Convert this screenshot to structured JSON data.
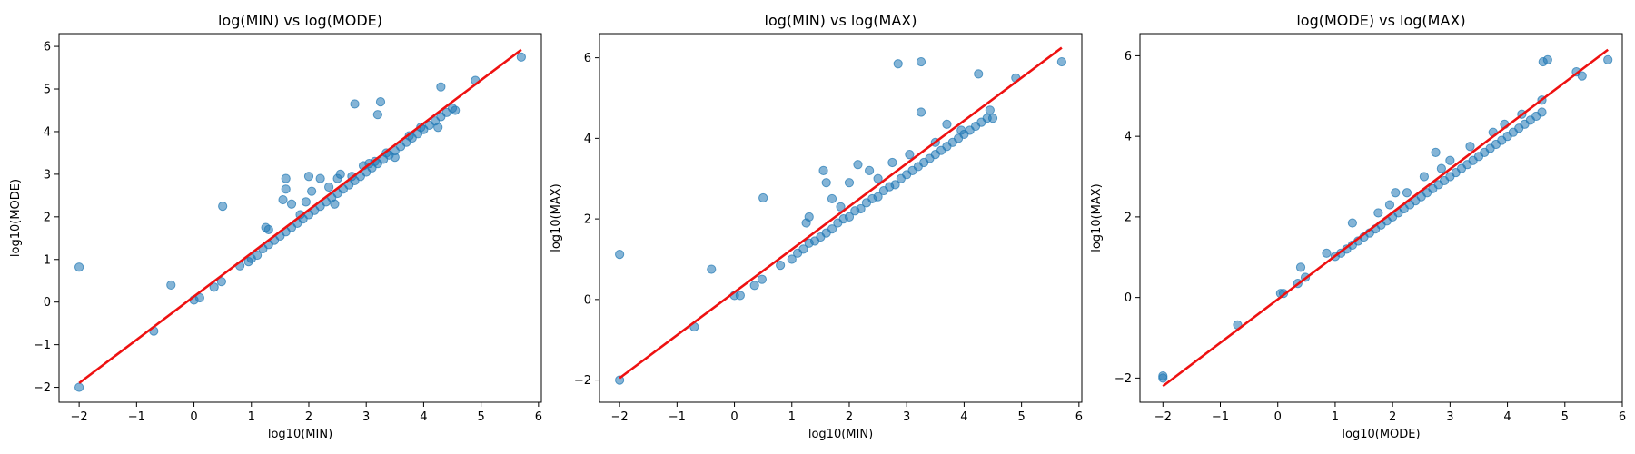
{
  "chart_data": [
    {
      "type": "scatter",
      "title": "log(MIN) vs log(MODE)",
      "xlabel": "log10(MIN)",
      "ylabel": "log10(MODE)",
      "xlim": [
        -2.35,
        6.05
      ],
      "ylim": [
        -2.35,
        6.3
      ],
      "xticks": [
        -2,
        -1,
        0,
        1,
        2,
        3,
        4,
        5,
        6
      ],
      "yticks": [
        -2,
        -1,
        0,
        1,
        2,
        3,
        4,
        5,
        6
      ],
      "xtick_labels": [
        "−2",
        "−1",
        "0",
        "1",
        "2",
        "3",
        "4",
        "5",
        "6"
      ],
      "ytick_labels": [
        "−2",
        "−1",
        "0",
        "1",
        "2",
        "3",
        "4",
        "5",
        "6"
      ],
      "grid": false,
      "series": [
        {
          "color": "#1f77b4",
          "points": [
            [
              -2.0,
              -2.0
            ],
            [
              -2.0,
              0.82
            ],
            [
              -0.7,
              -0.68
            ],
            [
              -0.4,
              0.4
            ],
            [
              0.0,
              0.05
            ],
            [
              0.1,
              0.1
            ],
            [
              0.35,
              0.35
            ],
            [
              0.48,
              0.48
            ],
            [
              0.5,
              2.25
            ],
            [
              0.8,
              0.85
            ],
            [
              0.95,
              0.95
            ],
            [
              1.0,
              1.02
            ],
            [
              1.1,
              1.1
            ],
            [
              1.2,
              1.25
            ],
            [
              1.3,
              1.35
            ],
            [
              1.25,
              1.75
            ],
            [
              1.3,
              1.7
            ],
            [
              1.4,
              1.45
            ],
            [
              1.5,
              1.55
            ],
            [
              1.55,
              2.4
            ],
            [
              1.6,
              2.65
            ],
            [
              1.6,
              2.9
            ],
            [
              1.6,
              1.65
            ],
            [
              1.7,
              1.75
            ],
            [
              1.7,
              2.3
            ],
            [
              1.8,
              1.85
            ],
            [
              1.85,
              2.05
            ],
            [
              1.9,
              1.95
            ],
            [
              1.95,
              2.35
            ],
            [
              2.0,
              2.05
            ],
            [
              2.05,
              2.6
            ],
            [
              2.0,
              2.95
            ],
            [
              2.1,
              2.15
            ],
            [
              2.2,
              2.25
            ],
            [
              2.2,
              2.9
            ],
            [
              2.3,
              2.35
            ],
            [
              2.35,
              2.7
            ],
            [
              2.4,
              2.45
            ],
            [
              2.45,
              2.3
            ],
            [
              2.5,
              2.55
            ],
            [
              2.5,
              2.9
            ],
            [
              2.55,
              3.0
            ],
            [
              2.6,
              2.65
            ],
            [
              2.7,
              2.75
            ],
            [
              2.75,
              2.95
            ],
            [
              2.8,
              2.85
            ],
            [
              2.8,
              4.65
            ],
            [
              2.9,
              2.95
            ],
            [
              2.95,
              3.2
            ],
            [
              3.0,
              3.05
            ],
            [
              3.05,
              3.25
            ],
            [
              3.1,
              3.15
            ],
            [
              3.15,
              3.3
            ],
            [
              3.2,
              3.25
            ],
            [
              3.2,
              4.4
            ],
            [
              3.25,
              4.7
            ],
            [
              3.3,
              3.35
            ],
            [
              3.35,
              3.5
            ],
            [
              3.4,
              3.45
            ],
            [
              3.5,
              3.55
            ],
            [
              3.5,
              3.4
            ],
            [
              3.6,
              3.65
            ],
            [
              3.7,
              3.75
            ],
            [
              3.75,
              3.9
            ],
            [
              3.8,
              3.85
            ],
            [
              3.9,
              3.95
            ],
            [
              3.95,
              4.1
            ],
            [
              4.0,
              4.05
            ],
            [
              4.1,
              4.15
            ],
            [
              4.2,
              4.25
            ],
            [
              4.25,
              4.1
            ],
            [
              4.3,
              4.35
            ],
            [
              4.3,
              5.05
            ],
            [
              4.4,
              4.45
            ],
            [
              4.5,
              4.55
            ],
            [
              4.55,
              4.5
            ],
            [
              4.9,
              5.2
            ],
            [
              5.7,
              5.75
            ]
          ]
        }
      ],
      "fit_line": {
        "color": "#ee1111",
        "x": [
          -2.0,
          5.7
        ],
        "y": [
          -1.9,
          5.92
        ]
      }
    },
    {
      "type": "scatter",
      "title": "log(MIN) vs log(MAX)",
      "xlabel": "log10(MIN)",
      "ylabel": "log10(MAX)",
      "xlim": [
        -2.35,
        6.05
      ],
      "ylim": [
        -2.55,
        6.6
      ],
      "xticks": [
        -2,
        -1,
        0,
        1,
        2,
        3,
        4,
        5,
        6
      ],
      "yticks": [
        -2,
        0,
        2,
        4,
        6
      ],
      "xtick_labels": [
        "−2",
        "−1",
        "0",
        "1",
        "2",
        "3",
        "4",
        "5",
        "6"
      ],
      "ytick_labels": [
        "−2",
        "0",
        "2",
        "4",
        "6"
      ],
      "grid": false,
      "series": [
        {
          "color": "#1f77b4",
          "points": [
            [
              -2.0,
              -2.0
            ],
            [
              -2.0,
              1.12
            ],
            [
              -0.7,
              -0.68
            ],
            [
              -0.4,
              0.75
            ],
            [
              0.0,
              0.1
            ],
            [
              0.1,
              0.1
            ],
            [
              0.35,
              0.35
            ],
            [
              0.48,
              0.5
            ],
            [
              0.5,
              2.52
            ],
            [
              0.8,
              0.85
            ],
            [
              1.0,
              1.0
            ],
            [
              1.1,
              1.15
            ],
            [
              1.2,
              1.25
            ],
            [
              1.25,
              1.9
            ],
            [
              1.3,
              2.05
            ],
            [
              1.3,
              1.4
            ],
            [
              1.4,
              1.45
            ],
            [
              1.5,
              1.55
            ],
            [
              1.55,
              3.2
            ],
            [
              1.6,
              2.9
            ],
            [
              1.6,
              1.65
            ],
            [
              1.7,
              1.75
            ],
            [
              1.7,
              2.5
            ],
            [
              1.8,
              1.9
            ],
            [
              1.85,
              2.3
            ],
            [
              1.9,
              2.0
            ],
            [
              2.0,
              2.05
            ],
            [
              2.0,
              2.9
            ],
            [
              2.1,
              2.2
            ],
            [
              2.15,
              3.35
            ],
            [
              2.2,
              2.25
            ],
            [
              2.3,
              2.4
            ],
            [
              2.35,
              3.2
            ],
            [
              2.4,
              2.5
            ],
            [
              2.5,
              2.55
            ],
            [
              2.5,
              3.0
            ],
            [
              2.6,
              2.7
            ],
            [
              2.7,
              2.8
            ],
            [
              2.75,
              3.4
            ],
            [
              2.8,
              2.85
            ],
            [
              2.85,
              5.85
            ],
            [
              2.9,
              3.0
            ],
            [
              3.0,
              3.1
            ],
            [
              3.05,
              3.6
            ],
            [
              3.1,
              3.2
            ],
            [
              3.2,
              3.3
            ],
            [
              3.25,
              4.65
            ],
            [
              3.25,
              5.9
            ],
            [
              3.3,
              3.4
            ],
            [
              3.4,
              3.5
            ],
            [
              3.5,
              3.6
            ],
            [
              3.5,
              3.9
            ],
            [
              3.6,
              3.7
            ],
            [
              3.7,
              3.8
            ],
            [
              3.7,
              4.35
            ],
            [
              3.8,
              3.9
            ],
            [
              3.9,
              4.0
            ],
            [
              3.95,
              4.2
            ],
            [
              4.0,
              4.1
            ],
            [
              4.1,
              4.2
            ],
            [
              4.2,
              4.3
            ],
            [
              4.25,
              5.6
            ],
            [
              4.3,
              4.4
            ],
            [
              4.4,
              4.5
            ],
            [
              4.45,
              4.7
            ],
            [
              4.5,
              4.5
            ],
            [
              4.9,
              5.5
            ],
            [
              5.7,
              5.9
            ]
          ]
        }
      ],
      "fit_line": {
        "color": "#ee1111",
        "x": [
          -2.0,
          5.7
        ],
        "y": [
          -1.95,
          6.25
        ]
      }
    },
    {
      "type": "scatter",
      "title": "log(MODE) vs log(MAX)",
      "xlabel": "log10(MODE)",
      "ylabel": "log10(MAX)",
      "xlim": [
        -2.4,
        6.0
      ],
      "ylim": [
        -2.6,
        6.55
      ],
      "xticks": [
        -2,
        -1,
        0,
        1,
        2,
        3,
        4,
        5,
        6
      ],
      "yticks": [
        -2,
        0,
        2,
        4,
        6
      ],
      "xtick_labels": [
        "−2",
        "−1",
        "0",
        "1",
        "2",
        "3",
        "4",
        "5",
        "6"
      ],
      "ytick_labels": [
        "−2",
        "0",
        "2",
        "4",
        "6"
      ],
      "grid": false,
      "series": [
        {
          "color": "#1f77b4",
          "points": [
            [
              -2.0,
              -2.0
            ],
            [
              -2.0,
              -1.95
            ],
            [
              -0.7,
              -0.68
            ],
            [
              0.05,
              0.1
            ],
            [
              0.1,
              0.1
            ],
            [
              0.35,
              0.35
            ],
            [
              0.4,
              0.75
            ],
            [
              0.48,
              0.5
            ],
            [
              0.85,
              1.1
            ],
            [
              1.0,
              1.02
            ],
            [
              1.1,
              1.1
            ],
            [
              1.2,
              1.2
            ],
            [
              1.3,
              1.85
            ],
            [
              1.3,
              1.3
            ],
            [
              1.4,
              1.4
            ],
            [
              1.5,
              1.5
            ],
            [
              1.6,
              1.6
            ],
            [
              1.7,
              1.7
            ],
            [
              1.75,
              2.1
            ],
            [
              1.8,
              1.8
            ],
            [
              1.9,
              1.9
            ],
            [
              1.95,
              2.3
            ],
            [
              2.0,
              2.0
            ],
            [
              2.05,
              2.6
            ],
            [
              2.1,
              2.1
            ],
            [
              2.2,
              2.2
            ],
            [
              2.25,
              2.6
            ],
            [
              2.3,
              2.3
            ],
            [
              2.4,
              2.4
            ],
            [
              2.5,
              2.5
            ],
            [
              2.55,
              3.0
            ],
            [
              2.6,
              2.6
            ],
            [
              2.7,
              2.7
            ],
            [
              2.75,
              3.6
            ],
            [
              2.8,
              2.8
            ],
            [
              2.85,
              3.2
            ],
            [
              2.9,
              2.9
            ],
            [
              3.0,
              3.0
            ],
            [
              3.0,
              3.4
            ],
            [
              3.1,
              3.1
            ],
            [
              3.2,
              3.2
            ],
            [
              3.3,
              3.3
            ],
            [
              3.35,
              3.75
            ],
            [
              3.4,
              3.4
            ],
            [
              3.5,
              3.5
            ],
            [
              3.6,
              3.6
            ],
            [
              3.7,
              3.7
            ],
            [
              3.75,
              4.1
            ],
            [
              3.8,
              3.8
            ],
            [
              3.9,
              3.9
            ],
            [
              3.95,
              4.3
            ],
            [
              4.0,
              4.0
            ],
            [
              4.1,
              4.1
            ],
            [
              4.2,
              4.2
            ],
            [
              4.25,
              4.55
            ],
            [
              4.3,
              4.3
            ],
            [
              4.4,
              4.4
            ],
            [
              4.5,
              4.5
            ],
            [
              4.6,
              4.6
            ],
            [
              4.6,
              4.9
            ],
            [
              4.62,
              5.85
            ],
            [
              4.7,
              5.9
            ],
            [
              5.2,
              5.6
            ],
            [
              5.3,
              5.5
            ],
            [
              5.75,
              5.9
            ]
          ]
        }
      ],
      "fit_line": {
        "color": "#ee1111",
        "x": [
          -2.0,
          5.75
        ],
        "y": [
          -2.2,
          6.15
        ]
      }
    }
  ]
}
